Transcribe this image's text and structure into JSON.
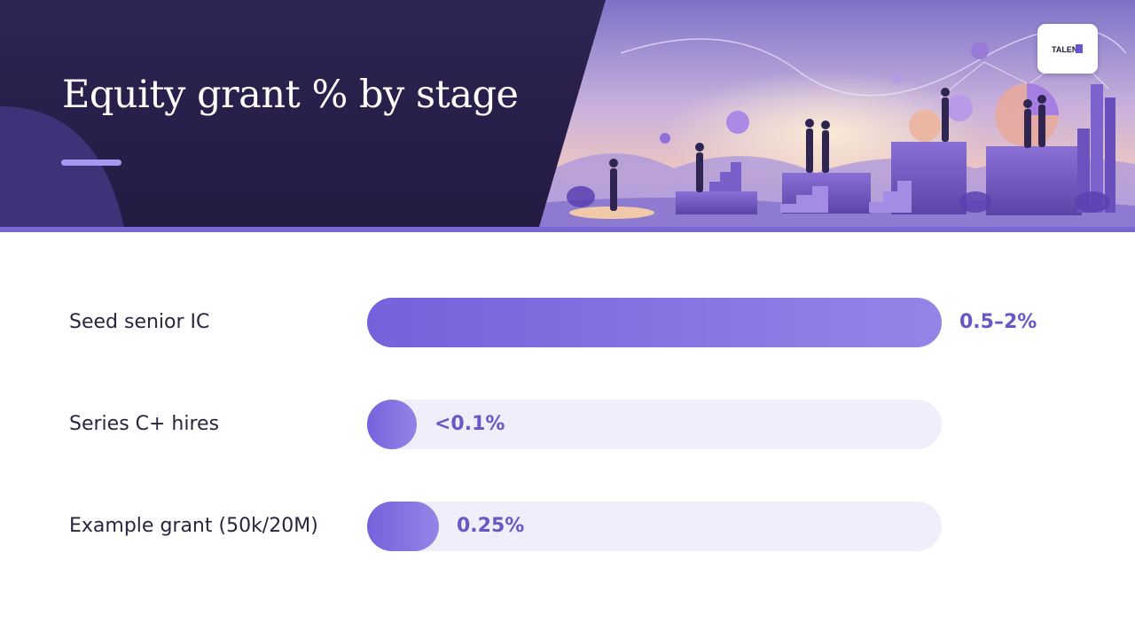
{
  "slide": {
    "title": "Equity grant % by stage",
    "logo_text": "TALENT"
  },
  "colors": {
    "header_dark": "#2b2250",
    "accent": "#7b68d6",
    "bar_fill_start": "#7462dc",
    "bar_fill_end": "#9584e6",
    "bar_track": "#f1eefb",
    "value_text": "#6957c7",
    "label_text": "#2a2440"
  },
  "chart_data": {
    "type": "bar",
    "orientation": "horizontal",
    "title": "Equity grant % by stage",
    "categories": [
      "Seed senior IC",
      "Series C+ hires",
      "Example grant (50k/20M)"
    ],
    "value_labels": [
      "0.5–2%",
      "<0.1%",
      "0.25%"
    ],
    "values": [
      2.0,
      0.1,
      0.25
    ],
    "xlim": [
      0,
      2.0
    ],
    "grid": false,
    "legend": "none"
  }
}
